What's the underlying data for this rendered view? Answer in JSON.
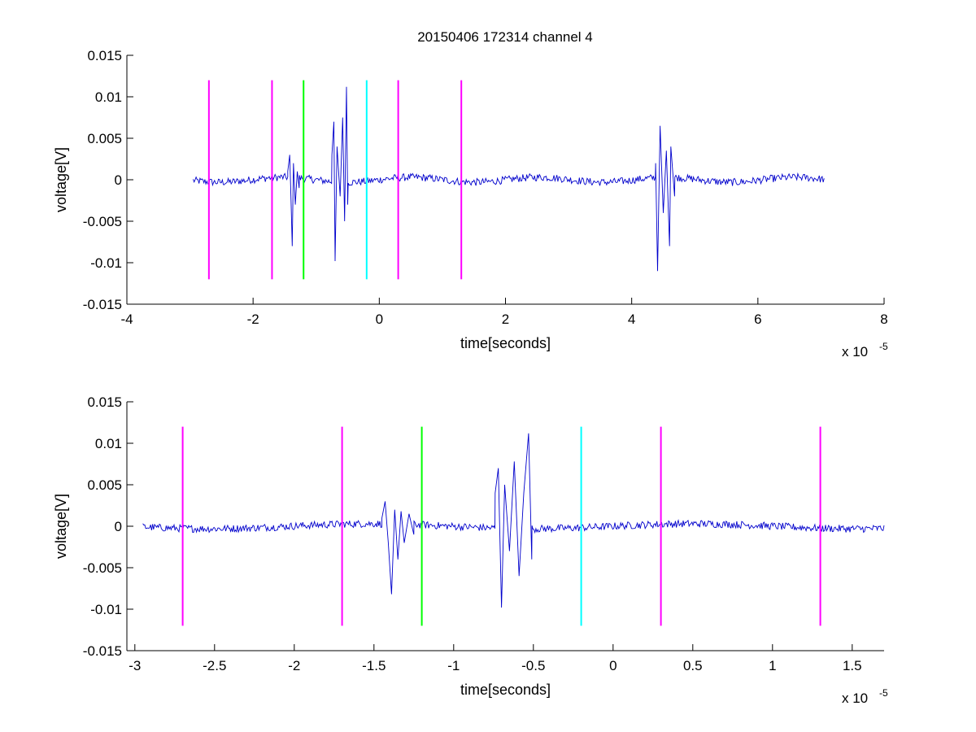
{
  "chart_data": [
    {
      "type": "line",
      "title": "20150406 172314 channel 4",
      "xlabel": "time[seconds]",
      "ylabel": "voltage[V]",
      "x_multiplier": "x 10",
      "x_multiplier_exp": "-5",
      "xlim": [
        -4,
        8
      ],
      "ylim": [
        -0.015,
        0.015
      ],
      "x_unit_scale": "1e-5",
      "xticks": [
        -4,
        -2,
        0,
        2,
        4,
        6,
        8
      ],
      "xtick_labels": [
        "-4",
        "-2",
        "0",
        "2",
        "4",
        "6",
        "8"
      ],
      "yticks": [
        -0.015,
        -0.01,
        -0.005,
        0,
        0.005,
        0.01,
        0.015
      ],
      "ytick_labels": [
        "-0.015",
        "-0.01",
        "-0.005",
        "0",
        "0.005",
        "0.01",
        "0.015"
      ],
      "grid": false,
      "signal_color": "#0000cc",
      "signal_range": [
        -2.95,
        7.05
      ],
      "bursts": [
        {
          "x": [
            -1.45,
            -1.42,
            -1.4,
            -1.38,
            -1.36,
            -1.33,
            -1.3,
            -1.27
          ],
          "y": [
            0.001,
            0.003,
            -0.002,
            -0.008,
            0.002,
            -0.003,
            0.001,
            -0.001
          ]
        },
        {
          "x": [
            -0.75,
            -0.72,
            -0.7,
            -0.67,
            -0.62,
            -0.58,
            -0.55,
            -0.52,
            -0.5
          ],
          "y": [
            0.003,
            0.007,
            -0.0098,
            0.004,
            -0.002,
            0.0075,
            -0.005,
            0.0112,
            -0.003
          ]
        },
        {
          "x": [
            4.38,
            4.41,
            4.45,
            4.5,
            4.55,
            4.6,
            4.62,
            4.68
          ],
          "y": [
            0.002,
            -0.011,
            0.0065,
            -0.004,
            0.0035,
            -0.008,
            0.004,
            -0.002
          ]
        }
      ],
      "vlines": [
        {
          "x": -2.7,
          "color": "#ff00ff"
        },
        {
          "x": -1.7,
          "color": "#ff00ff"
        },
        {
          "x": -1.2,
          "color": "#00ff00"
        },
        {
          "x": -0.2,
          "color": "#00ffff"
        },
        {
          "x": 0.3,
          "color": "#ff00ff"
        },
        {
          "x": 1.3,
          "color": "#ff00ff"
        }
      ],
      "vline_range": [
        -0.012,
        0.012
      ]
    },
    {
      "type": "line",
      "title": "",
      "xlabel": "time[seconds]",
      "ylabel": "voltage[V]",
      "x_multiplier": "x 10",
      "x_multiplier_exp": "-5",
      "xlim": [
        -3.05,
        1.7
      ],
      "ylim": [
        -0.015,
        0.015
      ],
      "x_unit_scale": "1e-5",
      "xticks": [
        -3,
        -2.5,
        -2,
        -1.5,
        -1,
        -0.5,
        0,
        0.5,
        1,
        1.5
      ],
      "xtick_labels": [
        "-3",
        "-2.5",
        "-2",
        "-1.5",
        "-1",
        "-0.5",
        "0",
        "0.5",
        "1",
        "1.5"
      ],
      "yticks": [
        -0.015,
        -0.01,
        -0.005,
        0,
        0.005,
        0.01,
        0.015
      ],
      "ytick_labels": [
        "-0.015",
        "-0.01",
        "-0.005",
        "0",
        "0.005",
        "0.01",
        "0.015"
      ],
      "grid": false,
      "signal_color": "#0000cc",
      "signal_range": [
        -2.95,
        1.7
      ],
      "bursts": [
        {
          "x": [
            -1.45,
            -1.43,
            -1.41,
            -1.39,
            -1.37,
            -1.35,
            -1.33,
            -1.31,
            -1.28,
            -1.25
          ],
          "y": [
            0.001,
            0.003,
            -0.002,
            -0.0082,
            0.002,
            -0.004,
            0.0018,
            -0.002,
            0.0015,
            -0.001
          ]
        },
        {
          "x": [
            -0.74,
            -0.72,
            -0.7,
            -0.68,
            -0.65,
            -0.62,
            -0.59,
            -0.56,
            -0.53,
            -0.51
          ],
          "y": [
            0.004,
            0.007,
            -0.0098,
            0.005,
            -0.003,
            0.0078,
            -0.006,
            0.004,
            0.0112,
            -0.004
          ]
        }
      ],
      "vlines": [
        {
          "x": -2.7,
          "color": "#ff00ff"
        },
        {
          "x": -1.7,
          "color": "#ff00ff"
        },
        {
          "x": -1.2,
          "color": "#00ff00"
        },
        {
          "x": -0.2,
          "color": "#00ffff"
        },
        {
          "x": 0.3,
          "color": "#ff00ff"
        },
        {
          "x": 1.3,
          "color": "#ff00ff"
        }
      ],
      "vline_range": [
        -0.012,
        0.012
      ]
    }
  ]
}
